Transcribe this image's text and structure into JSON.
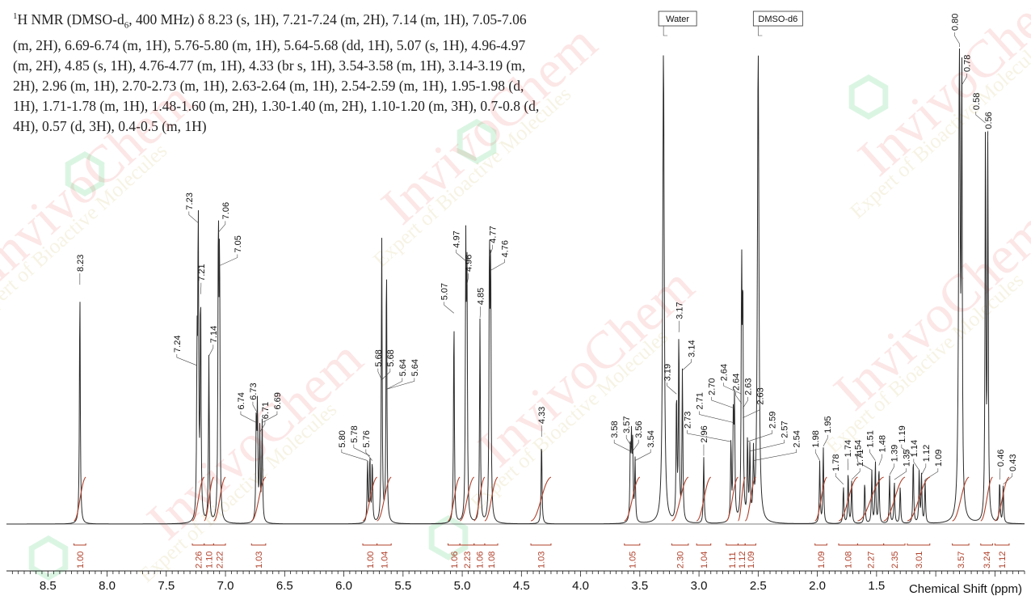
{
  "description": {
    "sup": "1",
    "p1": "H NMR (DMSO-d",
    "sub": "6",
    "p2": ", 400 MHz) δ 8.23 (s, 1H), 7.21-7.24 (m, 2H), 7.14 (m, 1H), 7.05-7.06 (m, 2H), 6.69-6.74 (m, 1H), 5.76-5.80 (m, 1H), 5.64-5.68 (dd, 1H), 5.07 (s, 1H), 4.96-4.97 (m, 2H), 4.85 (s, 1H), 4.76-4.77 (m, 1H), 4.33 (br s, 1H), 3.54-3.58 (m, 1H), 3.14-3.19 (m, 2H), 2.96 (m, 1H), 2.70-2.73 (m, 1H), 2.63-2.64 (m, 1H), 2.54-2.59 (m, 1H), 1.95-1.98 (d, 1H), 1.71-1.78 (m, 1H), 1.48-1.60 (m, 2H), 1.30-1.40 (m, 2H), 1.10-1.20 (m, 3H), 0.7-0.8 (d, 4H), 0.57 (d, 3H), 0.4-0.5 (m, 1H)"
  },
  "watermark": {
    "brand": "InvivoChem",
    "tagline": "Expert of Bioactive Molecules"
  },
  "chart_data": {
    "type": "line",
    "xlabel": "Chemical Shift (ppm)",
    "xlim": [
      8.85,
      0.25
    ],
    "x_reversed": true,
    "ticks": [
      "8.5",
      "8.0",
      "7.5",
      "7.0",
      "6.5",
      "6.0",
      "5.5",
      "5.0",
      "4.5",
      "4.0",
      "3.5",
      "3.0",
      "2.5",
      "2.0",
      "1.5"
    ],
    "colors": {
      "spectrum": "#2a2a2a",
      "integral": "#b0402a",
      "watermark_red": "#e53a3a",
      "watermark_green": "#27c25a",
      "watermark_gold": "#c9b45a"
    },
    "solvent_labels": [
      {
        "name": "Water",
        "ppm": 3.3
      },
      {
        "name": "DMSO-d6",
        "ppm": 2.5
      }
    ],
    "peaks": [
      {
        "ppm": 8.23,
        "height": 0.5,
        "label": "8.23"
      },
      {
        "ppm": 7.24,
        "height": 0.33,
        "label": "7.24"
      },
      {
        "ppm": 7.23,
        "height": 0.63,
        "label": "7.23"
      },
      {
        "ppm": 7.21,
        "height": 0.48,
        "label": "7.21"
      },
      {
        "ppm": 7.14,
        "height": 0.35,
        "label": "7.14"
      },
      {
        "ppm": 7.06,
        "height": 0.61,
        "label": "7.06"
      },
      {
        "ppm": 7.05,
        "height": 0.54,
        "label": "7.05"
      },
      {
        "ppm": 6.74,
        "height": 0.21,
        "label": "6.74"
      },
      {
        "ppm": 6.73,
        "height": 0.23,
        "label": "6.73"
      },
      {
        "ppm": 6.71,
        "height": 0.19,
        "label": "6.71"
      },
      {
        "ppm": 6.69,
        "height": 0.21,
        "label": "6.69"
      },
      {
        "ppm": 5.8,
        "height": 0.13,
        "label": "5.80"
      },
      {
        "ppm": 5.78,
        "height": 0.14,
        "label": "5.78"
      },
      {
        "ppm": 5.76,
        "height": 0.13,
        "label": "5.76"
      },
      {
        "ppm": 5.68,
        "height": 0.3,
        "label": "5.68"
      },
      {
        "ppm": 5.68,
        "height": 0.3,
        "label": "5.68"
      },
      {
        "ppm": 5.64,
        "height": 0.28,
        "label": "5.64"
      },
      {
        "ppm": 5.64,
        "height": 0.28,
        "label": "5.64"
      },
      {
        "ppm": 5.07,
        "height": 0.44,
        "label": "5.07"
      },
      {
        "ppm": 4.97,
        "height": 0.55,
        "label": "4.97"
      },
      {
        "ppm": 4.96,
        "height": 0.5,
        "label": "4.96"
      },
      {
        "ppm": 4.85,
        "height": 0.43,
        "label": "4.85"
      },
      {
        "ppm": 4.77,
        "height": 0.56,
        "label": "4.77"
      },
      {
        "ppm": 4.76,
        "height": 0.53,
        "label": "4.76"
      },
      {
        "ppm": 4.33,
        "height": 0.18,
        "label": "4.33"
      },
      {
        "ppm": 3.58,
        "height": 0.15,
        "label": "3.58"
      },
      {
        "ppm": 3.57,
        "height": 0.16,
        "label": "3.57"
      },
      {
        "ppm": 3.56,
        "height": 0.15,
        "label": "3.56"
      },
      {
        "ppm": 3.54,
        "height": 0.13,
        "label": "3.54"
      },
      {
        "ppm": 3.3,
        "height": 1.0,
        "label": ""
      },
      {
        "ppm": 3.19,
        "height": 0.27,
        "label": "3.19"
      },
      {
        "ppm": 3.17,
        "height": 0.4,
        "label": "3.17"
      },
      {
        "ppm": 3.14,
        "height": 0.32,
        "label": "3.14"
      },
      {
        "ppm": 2.96,
        "height": 0.14,
        "label": "2.96"
      },
      {
        "ppm": 2.73,
        "height": 0.17,
        "label": "2.73"
      },
      {
        "ppm": 2.71,
        "height": 0.21,
        "label": "2.71"
      },
      {
        "ppm": 2.7,
        "height": 0.24,
        "label": "2.70"
      },
      {
        "ppm": 2.64,
        "height": 0.27,
        "label": "2.64"
      },
      {
        "ppm": 2.64,
        "height": 0.25,
        "label": "2.64"
      },
      {
        "ppm": 2.63,
        "height": 0.24,
        "label": "2.63"
      },
      {
        "ppm": 2.63,
        "height": 0.22,
        "label": "2.63"
      },
      {
        "ppm": 2.59,
        "height": 0.17,
        "label": "2.59"
      },
      {
        "ppm": 2.57,
        "height": 0.15,
        "label": "2.57"
      },
      {
        "ppm": 2.54,
        "height": 0.13,
        "label": "2.54"
      },
      {
        "ppm": 2.5,
        "height": 1.0,
        "label": ""
      },
      {
        "ppm": 1.98,
        "height": 0.13,
        "label": "1.98"
      },
      {
        "ppm": 1.95,
        "height": 0.16,
        "label": "1.95"
      },
      {
        "ppm": 1.78,
        "height": 0.08,
        "label": "1.78"
      },
      {
        "ppm": 1.74,
        "height": 0.11,
        "label": "1.74"
      },
      {
        "ppm": 1.71,
        "height": 0.09,
        "label": "1.71"
      },
      {
        "ppm": 1.6,
        "height": 0.09,
        "label": ""
      },
      {
        "ppm": 1.54,
        "height": 0.11,
        "label": "1.54"
      },
      {
        "ppm": 1.51,
        "height": 0.13,
        "label": "1.51"
      },
      {
        "ppm": 1.48,
        "height": 0.12,
        "label": "1.48"
      },
      {
        "ppm": 1.39,
        "height": 0.1,
        "label": "1.39"
      },
      {
        "ppm": 1.35,
        "height": 0.09,
        "label": "1.35"
      },
      {
        "ppm": 1.3,
        "height": 0.08,
        "label": ""
      },
      {
        "ppm": 1.19,
        "height": 0.14,
        "label": "1.19"
      },
      {
        "ppm": 1.14,
        "height": 0.11,
        "label": "1.14"
      },
      {
        "ppm": 1.12,
        "height": 0.1,
        "label": "1.12"
      },
      {
        "ppm": 1.09,
        "height": 0.09,
        "label": "1.09"
      },
      {
        "ppm": 0.8,
        "height": 1.0,
        "label": "0.80"
      },
      {
        "ppm": 0.78,
        "height": 0.92,
        "label": "0.78"
      },
      {
        "ppm": 0.58,
        "height": 0.84,
        "label": "0.58"
      },
      {
        "ppm": 0.56,
        "height": 0.8,
        "label": "0.56"
      },
      {
        "ppm": 0.46,
        "height": 0.09,
        "label": "0.46"
      },
      {
        "ppm": 0.43,
        "height": 0.08,
        "label": "0.43"
      }
    ],
    "integrals": [
      {
        "start": 8.28,
        "end": 8.18,
        "value": "1.00"
      },
      {
        "start": 7.28,
        "end": 7.18,
        "value": "2.26"
      },
      {
        "start": 7.18,
        "end": 7.1,
        "value": "1.10"
      },
      {
        "start": 7.1,
        "end": 7.0,
        "value": "2.22"
      },
      {
        "start": 6.78,
        "end": 6.66,
        "value": "1.03"
      },
      {
        "start": 5.84,
        "end": 5.72,
        "value": "1.00"
      },
      {
        "start": 5.72,
        "end": 5.6,
        "value": "1.04"
      },
      {
        "start": 5.12,
        "end": 5.02,
        "value": "1.06"
      },
      {
        "start": 5.02,
        "end": 4.9,
        "value": "2.23"
      },
      {
        "start": 4.9,
        "end": 4.81,
        "value": "1.06"
      },
      {
        "start": 4.81,
        "end": 4.7,
        "value": "1.08"
      },
      {
        "start": 4.42,
        "end": 4.25,
        "value": "1.03"
      },
      {
        "start": 3.63,
        "end": 3.5,
        "value": "1.05"
      },
      {
        "start": 3.23,
        "end": 3.09,
        "value": "2.30"
      },
      {
        "start": 3.02,
        "end": 2.9,
        "value": "1.04"
      },
      {
        "start": 2.77,
        "end": 2.67,
        "value": "1.11"
      },
      {
        "start": 2.67,
        "end": 2.61,
        "value": "1.12"
      },
      {
        "start": 2.61,
        "end": 2.52,
        "value": "1.09"
      },
      {
        "start": 2.02,
        "end": 1.92,
        "value": "1.09"
      },
      {
        "start": 1.82,
        "end": 1.66,
        "value": "1.08"
      },
      {
        "start": 1.66,
        "end": 1.44,
        "value": "2.27"
      },
      {
        "start": 1.44,
        "end": 1.26,
        "value": "2.35"
      },
      {
        "start": 1.24,
        "end": 1.05,
        "value": "3.01"
      },
      {
        "start": 0.86,
        "end": 0.72,
        "value": "3.57"
      },
      {
        "start": 0.62,
        "end": 0.52,
        "value": "3.24"
      },
      {
        "start": 0.5,
        "end": 0.38,
        "value": "1.12"
      }
    ]
  }
}
